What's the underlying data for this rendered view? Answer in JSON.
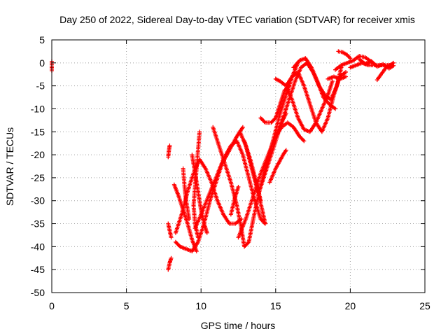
{
  "chart_data": {
    "type": "scatter",
    "title": "Day 250 of 2022, Sidereal Day-to-day VTEC variation (SDTVAR) for receiver xmis",
    "xlabel": "GPS time / hours",
    "ylabel": "SDTVAR / TECUs",
    "xlim": [
      0,
      25
    ],
    "ylim": [
      -50,
      5
    ],
    "xticks": [
      "0",
      "5",
      "10",
      "15",
      "20",
      "25"
    ],
    "yticks": [
      "5",
      "0",
      "-5",
      "-10",
      "-15",
      "-20",
      "-25",
      "-30",
      "-35",
      "-40",
      "-45",
      "-50"
    ],
    "grid": true,
    "marker": "plus",
    "series_color": "#ff0000",
    "tracks": [
      [
        [
          7.8,
          -20.5
        ],
        [
          7.85,
          -19
        ],
        [
          7.9,
          -18
        ]
      ],
      [
        [
          7.8,
          -35
        ],
        [
          7.9,
          -36.5
        ],
        [
          8.0,
          -38
        ]
      ],
      [
        [
          7.8,
          -45
        ],
        [
          7.9,
          -43.5
        ],
        [
          8.0,
          -42.5
        ]
      ],
      [
        [
          8.2,
          -26.5
        ],
        [
          8.5,
          -29
        ],
        [
          8.8,
          -32
        ],
        [
          9.1,
          -35
        ],
        [
          9.4,
          -38.5
        ],
        [
          9.7,
          -41
        ]
      ],
      [
        [
          8.3,
          -39
        ],
        [
          8.6,
          -40
        ],
        [
          9.0,
          -40.5
        ],
        [
          9.4,
          -41
        ],
        [
          9.8,
          -39
        ],
        [
          10.2,
          -35
        ],
        [
          10.6,
          -30
        ],
        [
          11.0,
          -26
        ],
        [
          11.4,
          -22
        ],
        [
          11.9,
          -19
        ],
        [
          12.4,
          -16
        ],
        [
          12.8,
          -14
        ]
      ],
      [
        [
          8.3,
          -37
        ],
        [
          8.7,
          -33
        ],
        [
          9.1,
          -28
        ],
        [
          9.5,
          -24
        ],
        [
          9.9,
          -21
        ],
        [
          10.3,
          -23
        ],
        [
          10.7,
          -26
        ],
        [
          11.1,
          -30
        ],
        [
          11.5,
          -33
        ],
        [
          11.9,
          -35
        ],
        [
          12.3,
          -35
        ],
        [
          12.7,
          -34
        ]
      ],
      [
        [
          9.6,
          -36
        ],
        [
          10.0,
          -33
        ],
        [
          10.5,
          -29
        ],
        [
          11.0,
          -25
        ],
        [
          11.5,
          -21
        ],
        [
          12.0,
          -18
        ],
        [
          12.4,
          -17
        ],
        [
          12.8,
          -20
        ],
        [
          13.2,
          -25
        ],
        [
          13.6,
          -30
        ],
        [
          14.0,
          -34
        ],
        [
          14.3,
          -35
        ]
      ],
      [
        [
          8.8,
          -23
        ],
        [
          8.9,
          -27
        ],
        [
          9.0,
          -30
        ],
        [
          9.2,
          -34
        ]
      ],
      [
        [
          9.4,
          -20
        ],
        [
          9.6,
          -24
        ],
        [
          9.8,
          -28
        ],
        [
          10.0,
          -32
        ],
        [
          10.2,
          -35
        ],
        [
          10.4,
          -37
        ]
      ],
      [
        [
          9.9,
          -15
        ],
        [
          9.8,
          -19
        ],
        [
          9.7,
          -23
        ],
        [
          9.6,
          -27
        ],
        [
          9.5,
          -31
        ],
        [
          9.6,
          -35
        ],
        [
          9.8,
          -38
        ]
      ],
      [
        [
          10.8,
          -14
        ],
        [
          11.2,
          -18
        ],
        [
          11.6,
          -22
        ],
        [
          12.0,
          -26
        ],
        [
          12.4,
          -31
        ],
        [
          12.7,
          -36
        ],
        [
          12.9,
          -40
        ],
        [
          13.2,
          -39
        ],
        [
          13.5,
          -34
        ],
        [
          13.9,
          -28
        ],
        [
          14.4,
          -22
        ],
        [
          14.9,
          -16
        ],
        [
          15.3,
          -11
        ],
        [
          15.7,
          -7
        ],
        [
          16.1,
          -3
        ],
        [
          16.5,
          0
        ]
      ],
      [
        [
          12.5,
          -38
        ],
        [
          13.0,
          -34
        ],
        [
          13.5,
          -29
        ],
        [
          14.0,
          -24
        ],
        [
          14.5,
          -20
        ],
        [
          15.0,
          -16
        ],
        [
          15.4,
          -13
        ],
        [
          15.7,
          -11
        ]
      ],
      [
        [
          12.9,
          -17
        ],
        [
          13.3,
          -21
        ],
        [
          13.7,
          -26
        ],
        [
          14.0,
          -30
        ]
      ],
      [
        [
          12.0,
          -33
        ],
        [
          12.3,
          -29
        ],
        [
          12.5,
          -27
        ]
      ],
      [
        [
          12.6,
          -15
        ],
        [
          13.0,
          -18
        ],
        [
          13.4,
          -23
        ],
        [
          13.8,
          -28
        ],
        [
          14.1,
          -32
        ],
        [
          14.3,
          -35
        ]
      ],
      [
        [
          13.9,
          -28
        ],
        [
          14.3,
          -24
        ],
        [
          14.7,
          -20
        ],
        [
          15.1,
          -16
        ],
        [
          15.5,
          -12
        ],
        [
          15.9,
          -8
        ],
        [
          16.3,
          -4
        ],
        [
          16.7,
          -1
        ],
        [
          17.1,
          0
        ],
        [
          17.5,
          -2
        ],
        [
          17.9,
          -5
        ],
        [
          18.3,
          -7
        ],
        [
          18.7,
          -8
        ],
        [
          19.1,
          -5
        ],
        [
          19.4,
          -1
        ]
      ],
      [
        [
          14.6,
          -26
        ],
        [
          15.0,
          -23
        ],
        [
          15.5,
          -20
        ],
        [
          15.7,
          -19
        ]
      ],
      [
        [
          14.0,
          -12
        ],
        [
          14.3,
          -13
        ],
        [
          14.7,
          -13
        ],
        [
          15.0,
          -12
        ],
        [
          15.3,
          -9
        ],
        [
          15.6,
          -6
        ],
        [
          15.9,
          -5
        ]
      ],
      [
        [
          15.0,
          -16
        ],
        [
          15.4,
          -14
        ],
        [
          15.8,
          -13
        ],
        [
          16.2,
          -14
        ],
        [
          16.6,
          -16
        ],
        [
          16.9,
          -17
        ]
      ],
      [
        [
          15.0,
          -3.5
        ],
        [
          15.3,
          -4
        ],
        [
          15.7,
          -5
        ],
        [
          16.1,
          -8
        ],
        [
          16.5,
          -12
        ],
        [
          16.9,
          -14.5
        ],
        [
          17.3,
          -15
        ],
        [
          17.7,
          -13
        ],
        [
          18.1,
          -10
        ],
        [
          18.5,
          -7
        ],
        [
          18.8,
          -4
        ]
      ],
      [
        [
          15.7,
          -5
        ],
        [
          16.1,
          -3
        ],
        [
          16.5,
          -2
        ],
        [
          16.9,
          -5
        ],
        [
          17.3,
          -9
        ],
        [
          17.7,
          -13
        ],
        [
          18.1,
          -15
        ],
        [
          18.5,
          -12
        ],
        [
          18.9,
          -7
        ],
        [
          19.3,
          -3
        ],
        [
          19.7,
          -2
        ]
      ],
      [
        [
          16.2,
          -1
        ],
        [
          16.6,
          0.5
        ],
        [
          17.0,
          1
        ],
        [
          17.4,
          -1
        ],
        [
          17.8,
          -4
        ],
        [
          18.2,
          -7.5
        ],
        [
          18.6,
          -9
        ],
        [
          19.0,
          -10
        ]
      ],
      [
        [
          18.5,
          -3.5
        ],
        [
          18.9,
          -3
        ],
        [
          19.3,
          -3.5
        ],
        [
          19.7,
          -3
        ]
      ],
      [
        [
          19.2,
          2.5
        ],
        [
          19.5,
          2.3
        ],
        [
          19.8,
          1.7
        ],
        [
          20.0,
          1
        ]
      ],
      [
        [
          19.0,
          -1.5
        ],
        [
          19.4,
          -0.5
        ],
        [
          19.8,
          0
        ],
        [
          20.2,
          0.5
        ],
        [
          20.6,
          1.5
        ],
        [
          21.0,
          1.2
        ],
        [
          21.3,
          0.5
        ],
        [
          21.5,
          0
        ]
      ],
      [
        [
          20.0,
          -1
        ],
        [
          20.4,
          -0.5
        ],
        [
          20.8,
          0
        ],
        [
          21.2,
          -0.5
        ],
        [
          21.6,
          -0.5
        ],
        [
          22.0,
          -0.5
        ],
        [
          22.4,
          -0.5
        ],
        [
          22.8,
          -0.5
        ]
      ],
      [
        [
          20.6,
          0.8
        ],
        [
          21.0,
          -0.2
        ],
        [
          21.4,
          0.4
        ],
        [
          21.8,
          -0.8
        ],
        [
          22.2,
          -0.3
        ],
        [
          22.6,
          -1.2
        ],
        [
          22.9,
          -0.6
        ]
      ],
      [
        [
          21.8,
          -3.7
        ],
        [
          22.4,
          -1
        ],
        [
          22.9,
          0
        ]
      ],
      [
        [
          0.0,
          0.3
        ],
        [
          0.0,
          -1.7
        ]
      ]
    ]
  }
}
